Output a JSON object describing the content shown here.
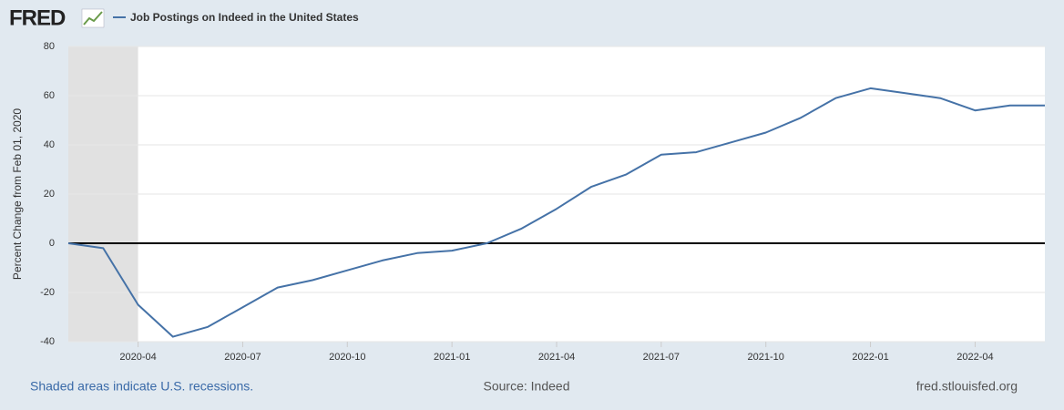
{
  "logo": "FRED",
  "chart_data": {
    "type": "line",
    "title": "Job Postings on Indeed in the United States",
    "y_label": "Percent Change from Feb 01, 2020",
    "x": [
      "2020-02",
      "2020-03",
      "2020-04",
      "2020-05",
      "2020-06",
      "2020-07",
      "2020-08",
      "2020-09",
      "2020-10",
      "2020-11",
      "2020-12",
      "2021-01",
      "2021-02",
      "2021-03",
      "2021-04",
      "2021-05",
      "2021-06",
      "2021-07",
      "2021-08",
      "2021-09",
      "2021-10",
      "2021-11",
      "2021-12",
      "2022-01",
      "2022-02",
      "2022-03",
      "2022-04",
      "2022-05",
      "2022-06"
    ],
    "series": [
      {
        "name": "Job Postings on Indeed in the United States",
        "color": "#4572a7",
        "values": [
          0,
          -2,
          -25,
          -38,
          -34,
          -26,
          -18,
          -15,
          -11,
          -7,
          -4,
          -3,
          0,
          6,
          14,
          23,
          28,
          36,
          37,
          41,
          45,
          51,
          59,
          63,
          61,
          59,
          54,
          56,
          56
        ]
      }
    ],
    "xlim": [
      "2020-02",
      "2022-06"
    ],
    "xticks": [
      "2020-04",
      "2020-07",
      "2020-10",
      "2021-01",
      "2021-04",
      "2021-07",
      "2021-10",
      "2022-01",
      "2022-04"
    ],
    "ylim": [
      -40,
      80
    ],
    "yticks": [
      -40,
      -20,
      0,
      20,
      40,
      60,
      80
    ],
    "grid": true,
    "recessions": [
      [
        "2020-02",
        "2020-04"
      ]
    ],
    "footer_left": "Shaded areas indicate U.S. recessions.",
    "footer_center": "Source: Indeed",
    "footer_right": "fred.stlouisfed.org"
  }
}
